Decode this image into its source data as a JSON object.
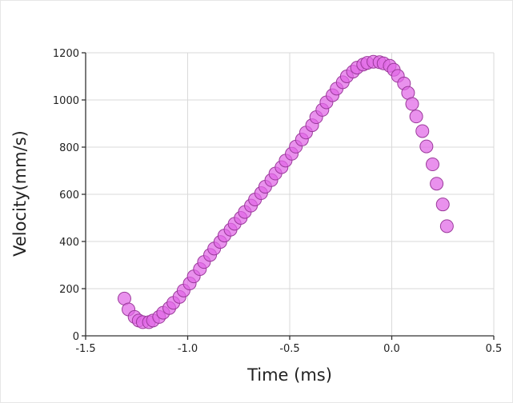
{
  "chart_data": {
    "type": "scatter",
    "title": "",
    "xlabel": "Time (ms)",
    "ylabel": "Velocity(mm/s)",
    "xlim": [
      -1.5,
      0.5
    ],
    "ylim": [
      0,
      1200
    ],
    "xticks": [
      -1.5,
      -1.0,
      -0.5,
      0.0,
      0.5
    ],
    "xtick_labels": [
      "-1.5",
      "-1.0",
      "-0.5",
      "0.0",
      "0.5"
    ],
    "yticks": [
      0,
      200,
      400,
      600,
      800,
      1000,
      1200
    ],
    "ytick_labels": [
      "0",
      "200",
      "400",
      "600",
      "800",
      "1000",
      "1200"
    ],
    "grid": true,
    "marker_color": "#e066e6",
    "edge_color": "#9b3a9b",
    "series": [
      {
        "points": [
          [
            -1.31,
            158
          ],
          [
            -1.29,
            112
          ],
          [
            -1.26,
            80
          ],
          [
            -1.24,
            65
          ],
          [
            -1.22,
            58
          ],
          [
            -1.19,
            58
          ],
          [
            -1.17,
            65
          ],
          [
            -1.14,
            80
          ],
          [
            -1.12,
            98
          ],
          [
            -1.09,
            118
          ],
          [
            -1.07,
            140
          ],
          [
            -1.04,
            165
          ],
          [
            -1.02,
            192
          ],
          [
            -0.99,
            222
          ],
          [
            -0.97,
            252
          ],
          [
            -0.94,
            283
          ],
          [
            -0.92,
            313
          ],
          [
            -0.89,
            343
          ],
          [
            -0.87,
            370
          ],
          [
            -0.84,
            398
          ],
          [
            -0.82,
            425
          ],
          [
            -0.79,
            450
          ],
          [
            -0.77,
            475
          ],
          [
            -0.74,
            500
          ],
          [
            -0.72,
            525
          ],
          [
            -0.69,
            552
          ],
          [
            -0.67,
            578
          ],
          [
            -0.64,
            605
          ],
          [
            -0.62,
            632
          ],
          [
            -0.59,
            660
          ],
          [
            -0.57,
            688
          ],
          [
            -0.54,
            715
          ],
          [
            -0.52,
            743
          ],
          [
            -0.49,
            772
          ],
          [
            -0.47,
            802
          ],
          [
            -0.44,
            832
          ],
          [
            -0.42,
            862
          ],
          [
            -0.39,
            893
          ],
          [
            -0.37,
            927
          ],
          [
            -0.34,
            958
          ],
          [
            -0.32,
            990
          ],
          [
            -0.29,
            1020
          ],
          [
            -0.27,
            1048
          ],
          [
            -0.24,
            1075
          ],
          [
            -0.22,
            1100
          ],
          [
            -0.19,
            1120
          ],
          [
            -0.17,
            1137
          ],
          [
            -0.14,
            1150
          ],
          [
            -0.12,
            1157
          ],
          [
            -0.09,
            1162
          ],
          [
            -0.06,
            1160
          ],
          [
            -0.04,
            1155
          ],
          [
            -0.01,
            1145
          ],
          [
            0.01,
            1128
          ],
          [
            0.03,
            1102
          ],
          [
            0.06,
            1070
          ],
          [
            0.08,
            1030
          ],
          [
            0.1,
            983
          ],
          [
            0.12,
            930
          ],
          [
            0.15,
            868
          ],
          [
            0.17,
            803
          ],
          [
            0.2,
            727
          ],
          [
            0.22,
            645
          ],
          [
            0.25,
            557
          ],
          [
            0.27,
            465
          ]
        ]
      }
    ]
  }
}
